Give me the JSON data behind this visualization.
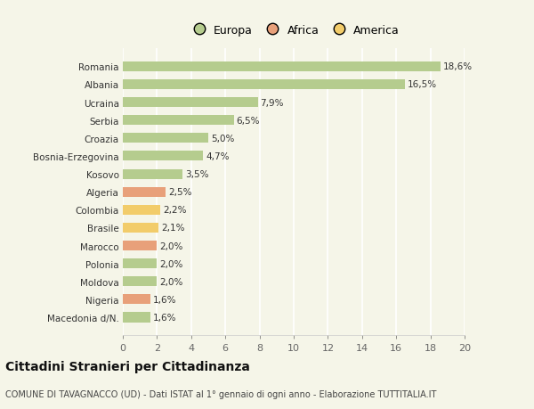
{
  "countries": [
    "Romania",
    "Albania",
    "Ucraina",
    "Serbia",
    "Croazia",
    "Bosnia-Erzegovina",
    "Kosovo",
    "Algeria",
    "Colombia",
    "Brasile",
    "Marocco",
    "Polonia",
    "Moldova",
    "Nigeria",
    "Macedonia d/N."
  ],
  "values": [
    18.6,
    16.5,
    7.9,
    6.5,
    5.0,
    4.7,
    3.5,
    2.5,
    2.2,
    2.1,
    2.0,
    2.0,
    2.0,
    1.6,
    1.6
  ],
  "labels": [
    "18,6%",
    "16,5%",
    "7,9%",
    "6,5%",
    "5,0%",
    "4,7%",
    "3,5%",
    "2,5%",
    "2,2%",
    "2,1%",
    "2,0%",
    "2,0%",
    "2,0%",
    "1,6%",
    "1,6%"
  ],
  "continents": [
    "Europa",
    "Europa",
    "Europa",
    "Europa",
    "Europa",
    "Europa",
    "Europa",
    "Africa",
    "America",
    "America",
    "Africa",
    "Europa",
    "Europa",
    "Africa",
    "Europa"
  ],
  "colors": {
    "Europa": "#b5cc8e",
    "Africa": "#e8a07a",
    "America": "#f2cc6a"
  },
  "legend_labels": [
    "Europa",
    "Africa",
    "America"
  ],
  "legend_colors": [
    "#b5cc8e",
    "#e8a07a",
    "#f2cc6a"
  ],
  "xlim": [
    0,
    20
  ],
  "xticks": [
    0,
    2,
    4,
    6,
    8,
    10,
    12,
    14,
    16,
    18,
    20
  ],
  "title": "Cittadini Stranieri per Cittadinanza",
  "subtitle": "COMUNE DI TAVAGNACCO (UD) - Dati ISTAT al 1° gennaio di ogni anno - Elaborazione TUTTITALIA.IT",
  "background_color": "#f5f5e8",
  "grid_color": "#e8e8e8",
  "bar_height": 0.55
}
